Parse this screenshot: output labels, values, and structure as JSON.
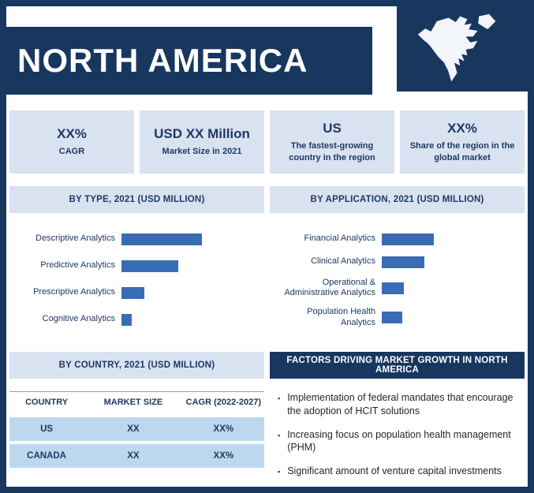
{
  "header": {
    "title": "NORTH AMERICA"
  },
  "colors": {
    "navy": "#17375e",
    "panel_light_blue": "#d9e2f0",
    "table_row_blue": "#bdd7ee",
    "bar_blue": "#3a6cb5",
    "text_navy": "#1f3864"
  },
  "stats": [
    {
      "value": "XX%",
      "label": "CAGR"
    },
    {
      "value": "USD XX Million",
      "label": "Market Size in 2021"
    },
    {
      "value": "US",
      "label": "The fastest-growing country in the region"
    },
    {
      "value": "XX%",
      "label": "Share of the region in the global market"
    }
  ],
  "chart_data": [
    {
      "type": "bar",
      "orientation": "horizontal",
      "title": "BY TYPE, 2021 (USD MILLION)",
      "categories": [
        "Descriptive Analytics",
        "Predictive Analytics",
        "Prescriptive Analytics",
        "Cognitive Analytics"
      ],
      "values": [
        100,
        71,
        28,
        13
      ],
      "values_unit": "relative bar length (no numeric labels shown in image)",
      "bar_color": "#3a6cb5",
      "axis_visible": false,
      "legend": false
    },
    {
      "type": "bar",
      "orientation": "horizontal",
      "title": "BY APPLICATION, 2021 (USD MILLION)",
      "categories": [
        "Financial Analytics",
        "Clinical Analytics",
        "Operational & Administrative Analytics",
        "Population Health Analytics"
      ],
      "values": [
        100,
        82,
        43,
        39
      ],
      "values_unit": "relative bar length (no numeric labels shown in image)",
      "bar_color": "#3a6cb5",
      "axis_visible": false,
      "legend": false
    },
    {
      "type": "table",
      "title": "BY COUNTRY, 2021 (USD MILLION)",
      "columns": [
        "COUNTRY",
        "MARKET SIZE",
        "CAGR (2022-2027)"
      ],
      "rows": [
        [
          "US",
          "XX",
          "XX%"
        ],
        [
          "CANADA",
          "XX",
          "XX%"
        ]
      ]
    }
  ],
  "factors": {
    "title": "FACTORS DRIVING MARKET GROWTH IN NORTH AMERICA",
    "bullet": "▪",
    "items": [
      "Implementation of federal mandates that encourage the adoption of HCIT solutions",
      "Increasing focus on population health management (PHM)",
      "Significant amount of venture capital investments"
    ]
  },
  "map": {
    "icon": "north-america-map"
  }
}
